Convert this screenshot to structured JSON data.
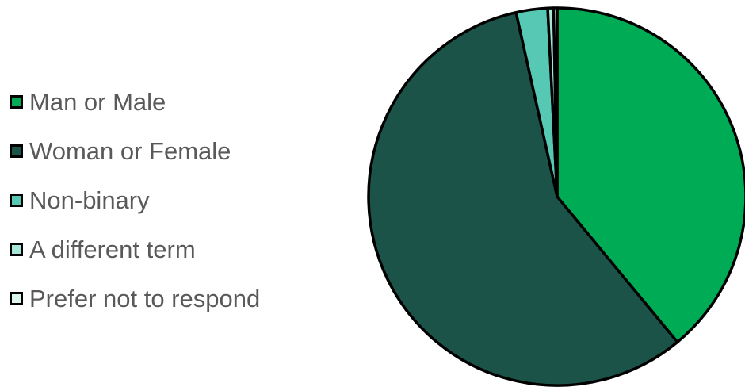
{
  "chart_data": {
    "type": "pie",
    "title": "",
    "legend_position": "left",
    "start_angle": "12 o'clock",
    "direction": "clockwise",
    "border_color": "#000000",
    "slices": [
      {
        "label": "Man or Male",
        "value": 39.0,
        "color": "#00AB55"
      },
      {
        "label": "Woman or Female",
        "value": 57.5,
        "color": "#1C5349"
      },
      {
        "label": "Non-binary",
        "value": 2.7,
        "color": "#56C8B4"
      },
      {
        "label": "A different term",
        "value": 0.5,
        "color": "#A6E6D8"
      },
      {
        "label": "Prefer not to respond",
        "value": 0.3,
        "color": "#DDF5EF"
      }
    ]
  }
}
